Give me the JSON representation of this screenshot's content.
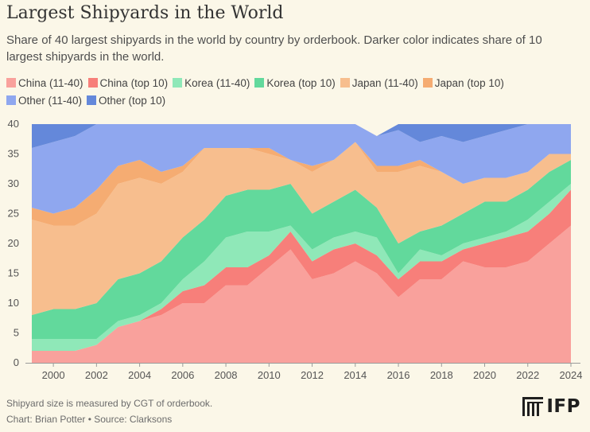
{
  "title": "Largest Shipyards in the World",
  "subtitle": "Share of 40 largest shipyards in the world by country by orderbook. Darker color indicates share of 10 largest shipyards in the world.",
  "footnote": "Shipyard size is measured by CGT of orderbook.",
  "credit": "Chart: Brian Potter • Source: Clarksons",
  "logo": {
    "text": "IFP",
    "icon": "ifp-logo-bars-icon"
  },
  "chart_data": {
    "type": "area",
    "stacked": true,
    "x": [
      1999,
      2000,
      2001,
      2002,
      2003,
      2004,
      2005,
      2006,
      2007,
      2008,
      2009,
      2010,
      2011,
      2012,
      2013,
      2014,
      2015,
      2016,
      2017,
      2018,
      2019,
      2020,
      2021,
      2022,
      2023,
      2024
    ],
    "xticks": [
      2000,
      2002,
      2004,
      2006,
      2008,
      2010,
      2012,
      2014,
      2016,
      2018,
      2020,
      2022,
      2024
    ],
    "ylim": [
      0,
      40
    ],
    "yticks": [
      0,
      5,
      10,
      15,
      20,
      25,
      30,
      35,
      40
    ],
    "grid": false,
    "legend_position": "top",
    "xlabel": "",
    "ylabel": "",
    "series": [
      {
        "name": "China (11-40)",
        "color": "#f9a19c",
        "values": [
          2,
          2,
          2,
          3,
          6,
          7,
          8,
          10,
          10,
          13,
          13,
          16,
          19,
          14,
          15,
          17,
          15,
          11,
          14,
          14,
          17,
          16,
          16,
          17,
          20,
          23
        ]
      },
      {
        "name": "China (top 10)",
        "color": "#f77f7a",
        "values": [
          0,
          0,
          0,
          0,
          0,
          0,
          1,
          2,
          3,
          3,
          3,
          2,
          3,
          3,
          4,
          3,
          3,
          3,
          3,
          3,
          2,
          4,
          5,
          5,
          5,
          6
        ]
      },
      {
        "name": "Korea (11-40)",
        "color": "#8fe8b8",
        "values": [
          2,
          2,
          2,
          1,
          1,
          1,
          1,
          2,
          4,
          5,
          6,
          4,
          1,
          2,
          2,
          2,
          3,
          1,
          2,
          1,
          1,
          1,
          1,
          2,
          2,
          1
        ]
      },
      {
        "name": "Korea (top 10)",
        "color": "#62d99c",
        "values": [
          4,
          5,
          5,
          6,
          7,
          7,
          7,
          7,
          7,
          7,
          7,
          7,
          7,
          6,
          6,
          7,
          5,
          5,
          3,
          5,
          5,
          6,
          5,
          5,
          5,
          4
        ]
      },
      {
        "name": "Japan (11-40)",
        "color": "#f7be8e",
        "values": [
          16,
          14,
          14,
          15,
          16,
          16,
          13,
          11,
          12,
          8,
          7,
          6,
          4,
          7,
          7,
          8,
          6,
          12,
          11,
          9,
          5,
          4,
          4,
          3,
          3,
          1
        ]
      },
      {
        "name": "Japan (top 10)",
        "color": "#f5ac72",
        "values": [
          2,
          2,
          3,
          4,
          3,
          3,
          2,
          1,
          0,
          0,
          0,
          1,
          0,
          1,
          0,
          0,
          1,
          1,
          1,
          0,
          0,
          0,
          0,
          0,
          0,
          0
        ]
      },
      {
        "name": "Other (11-40)",
        "color": "#8fa7ef",
        "values": [
          10,
          12,
          12,
          11,
          7,
          6,
          8,
          7,
          4,
          4,
          4,
          4,
          6,
          7,
          6,
          3,
          5,
          6,
          3,
          6,
          7,
          7,
          8,
          8,
          5,
          5
        ]
      },
      {
        "name": "Other (top 10)",
        "color": "#6488da",
        "values": [
          4,
          3,
          2,
          0,
          0,
          0,
          0,
          0,
          0,
          0,
          0,
          0,
          0,
          0,
          0,
          0,
          0,
          1,
          3,
          2,
          3,
          2,
          1,
          0,
          0,
          0
        ]
      }
    ]
  }
}
